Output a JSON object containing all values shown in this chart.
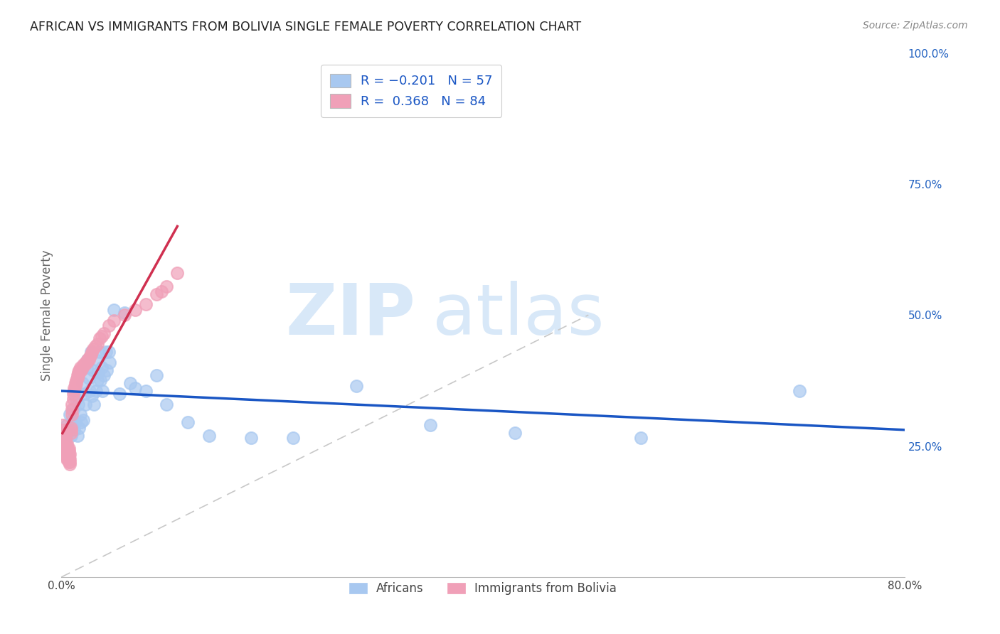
{
  "title": "AFRICAN VS IMMIGRANTS FROM BOLIVIA SINGLE FEMALE POVERTY CORRELATION CHART",
  "source": "Source: ZipAtlas.com",
  "ylabel": "Single Female Poverty",
  "african_color": "#A8C8F0",
  "bolivia_color": "#F0A0B8",
  "trendline_african_color": "#1A56C4",
  "trendline_bolivia_color": "#D03050",
  "diagonal_color": "#C8C8C8",
  "africans_x": [
    0.005,
    0.007,
    0.008,
    0.009,
    0.01,
    0.01,
    0.011,
    0.012,
    0.013,
    0.014,
    0.015,
    0.016,
    0.017,
    0.018,
    0.019,
    0.02,
    0.021,
    0.022,
    0.023,
    0.024,
    0.025,
    0.026,
    0.027,
    0.028,
    0.029,
    0.03,
    0.031,
    0.032,
    0.033,
    0.034,
    0.035,
    0.036,
    0.037,
    0.038,
    0.039,
    0.04,
    0.042,
    0.043,
    0.045,
    0.046,
    0.05,
    0.055,
    0.06,
    0.065,
    0.07,
    0.08,
    0.09,
    0.1,
    0.12,
    0.14,
    0.18,
    0.22,
    0.28,
    0.35,
    0.43,
    0.55,
    0.7
  ],
  "africans_y": [
    0.29,
    0.28,
    0.31,
    0.27,
    0.29,
    0.3,
    0.32,
    0.28,
    0.295,
    0.34,
    0.27,
    0.33,
    0.285,
    0.31,
    0.295,
    0.37,
    0.3,
    0.35,
    0.33,
    0.4,
    0.415,
    0.38,
    0.355,
    0.43,
    0.345,
    0.395,
    0.33,
    0.415,
    0.355,
    0.375,
    0.39,
    0.43,
    0.375,
    0.4,
    0.355,
    0.385,
    0.43,
    0.395,
    0.43,
    0.41,
    0.51,
    0.35,
    0.505,
    0.37,
    0.36,
    0.355,
    0.385,
    0.33,
    0.295,
    0.27,
    0.265,
    0.265,
    0.365,
    0.29,
    0.275,
    0.265,
    0.355
  ],
  "bolivia_x": [
    0.001,
    0.001,
    0.001,
    0.002,
    0.002,
    0.002,
    0.002,
    0.002,
    0.003,
    0.003,
    0.003,
    0.003,
    0.003,
    0.004,
    0.004,
    0.004,
    0.004,
    0.004,
    0.005,
    0.005,
    0.005,
    0.005,
    0.005,
    0.006,
    0.006,
    0.006,
    0.006,
    0.007,
    0.007,
    0.007,
    0.007,
    0.007,
    0.008,
    0.008,
    0.008,
    0.008,
    0.009,
    0.009,
    0.009,
    0.01,
    0.01,
    0.01,
    0.011,
    0.011,
    0.012,
    0.012,
    0.013,
    0.013,
    0.014,
    0.014,
    0.015,
    0.015,
    0.016,
    0.016,
    0.017,
    0.017,
    0.018,
    0.018,
    0.019,
    0.02,
    0.021,
    0.022,
    0.023,
    0.024,
    0.025,
    0.026,
    0.027,
    0.028,
    0.029,
    0.03,
    0.032,
    0.034,
    0.036,
    0.038,
    0.04,
    0.045,
    0.05,
    0.06,
    0.07,
    0.08,
    0.09,
    0.095,
    0.1,
    0.11
  ],
  "bolivia_y": [
    0.27,
    0.28,
    0.29,
    0.25,
    0.255,
    0.26,
    0.27,
    0.275,
    0.24,
    0.25,
    0.255,
    0.26,
    0.27,
    0.235,
    0.245,
    0.25,
    0.255,
    0.265,
    0.225,
    0.235,
    0.24,
    0.25,
    0.255,
    0.225,
    0.235,
    0.24,
    0.245,
    0.22,
    0.225,
    0.23,
    0.24,
    0.245,
    0.215,
    0.22,
    0.225,
    0.235,
    0.275,
    0.28,
    0.285,
    0.31,
    0.32,
    0.33,
    0.34,
    0.35,
    0.355,
    0.36,
    0.365,
    0.37,
    0.37,
    0.375,
    0.38,
    0.385,
    0.385,
    0.39,
    0.39,
    0.395,
    0.395,
    0.4,
    0.395,
    0.4,
    0.405,
    0.405,
    0.41,
    0.41,
    0.415,
    0.415,
    0.42,
    0.425,
    0.43,
    0.435,
    0.44,
    0.445,
    0.455,
    0.46,
    0.465,
    0.48,
    0.49,
    0.5,
    0.51,
    0.52,
    0.54,
    0.545,
    0.555,
    0.58
  ],
  "xlim": [
    0.0,
    0.8
  ],
  "ylim": [
    0.0,
    1.0
  ],
  "yticks_right": [
    0.25,
    0.5,
    0.75,
    1.0
  ],
  "ytick_labels_right": [
    "25.0%",
    "50.0%",
    "75.0%",
    "100.0%"
  ],
  "xtick_positions": [
    0.0,
    0.1,
    0.2,
    0.3,
    0.4,
    0.5,
    0.6,
    0.7,
    0.8
  ],
  "xtick_labels": [
    "0.0%",
    "",
    "",
    "",
    "",
    "",
    "",
    "",
    "80.0%"
  ]
}
